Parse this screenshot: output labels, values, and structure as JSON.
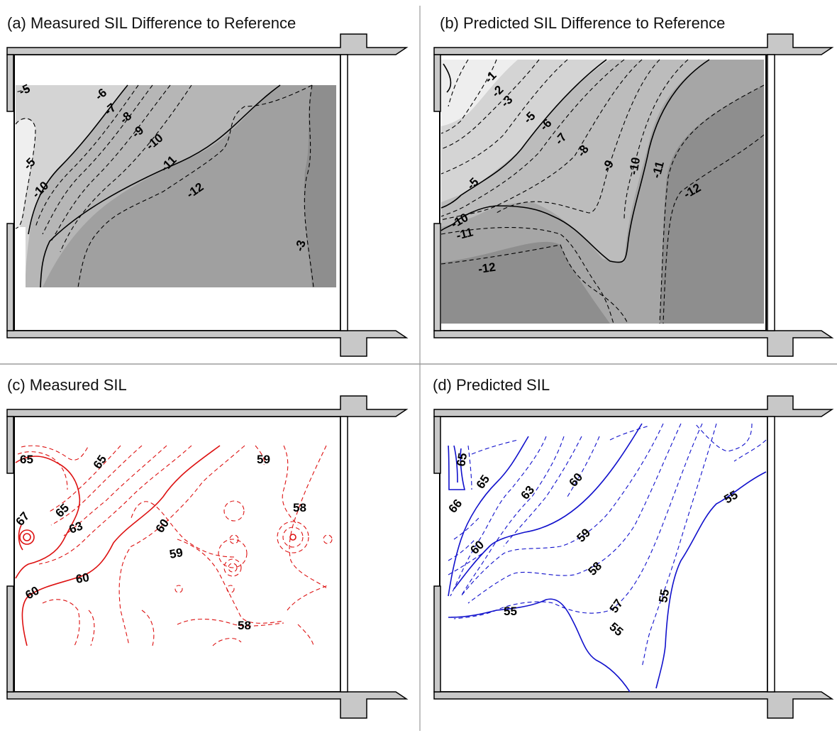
{
  "panels": [
    {
      "id": "a",
      "title": "(a) Measured SIL Difference to Reference",
      "line_color": "#000000",
      "fill_levels": [
        "#ededed",
        "#c8c8c8",
        "#a8a8a8",
        "#8e8e8e"
      ],
      "labels": [
        "-5",
        "-6",
        "-7",
        "-8",
        "-9",
        "-10",
        "-11",
        "-12",
        "-3",
        "-5",
        "-10"
      ]
    },
    {
      "id": "b",
      "title": "(b) Predicted SIL Difference to Reference",
      "line_color": "#000000",
      "fill_levels": [
        "#f0f0f0",
        "#cfcfcf",
        "#afafaf",
        "#8e8e8e"
      ],
      "labels": [
        "-1",
        "-2",
        "-3",
        "-5",
        "-6",
        "-7",
        "-8",
        "-9",
        "-10",
        "-11",
        "-12",
        "-5",
        "-10",
        "-11",
        "-12"
      ]
    },
    {
      "id": "c",
      "title": "(c) Measured SIL",
      "line_color": "#dd1111",
      "labels": [
        "65",
        "65",
        "59",
        "67",
        "65",
        "60",
        "58",
        "63",
        "59",
        "60",
        "60",
        "58"
      ]
    },
    {
      "id": "d",
      "title": "(d) Predicted SIL",
      "line_color": "#1111cc",
      "labels": [
        "65",
        "65",
        "66",
        "63",
        "60",
        "55",
        "60",
        "59",
        "58",
        "57",
        "55",
        "55",
        "55"
      ]
    }
  ]
}
